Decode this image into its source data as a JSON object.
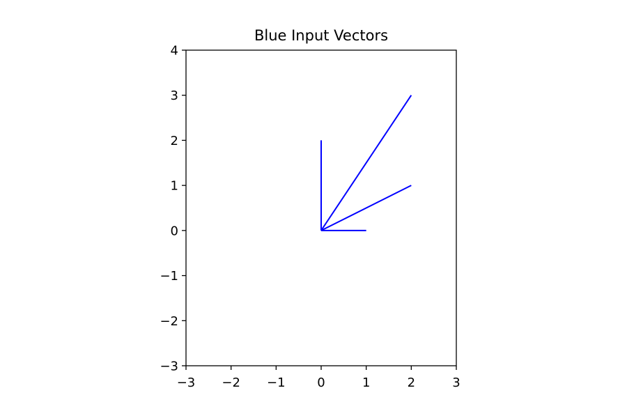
{
  "chart_data": {
    "type": "line",
    "title": "Blue Input Vectors",
    "xlabel": "",
    "ylabel": "",
    "xlim": [
      -3,
      3
    ],
    "ylim": [
      -3,
      4
    ],
    "xticks": [
      -3,
      -2,
      -1,
      0,
      1,
      2,
      3
    ],
    "yticks": [
      -3,
      -2,
      -1,
      0,
      1,
      2,
      3,
      4
    ],
    "xtick_labels": [
      "−3",
      "−2",
      "−1",
      "0",
      "1",
      "2",
      "3"
    ],
    "ytick_labels": [
      "−3",
      "−2",
      "−1",
      "0",
      "1",
      "2",
      "3",
      "4"
    ],
    "grid": false,
    "color": "#0000ff",
    "vectors": [
      {
        "x0": 0,
        "y0": 0,
        "x1": 1,
        "y1": 0
      },
      {
        "x0": 0,
        "y0": 0,
        "x1": 0,
        "y1": 2
      },
      {
        "x0": 0,
        "y0": 0,
        "x1": 2,
        "y1": 1
      },
      {
        "x0": 0,
        "y0": 0,
        "x1": 2,
        "y1": 3
      }
    ]
  }
}
